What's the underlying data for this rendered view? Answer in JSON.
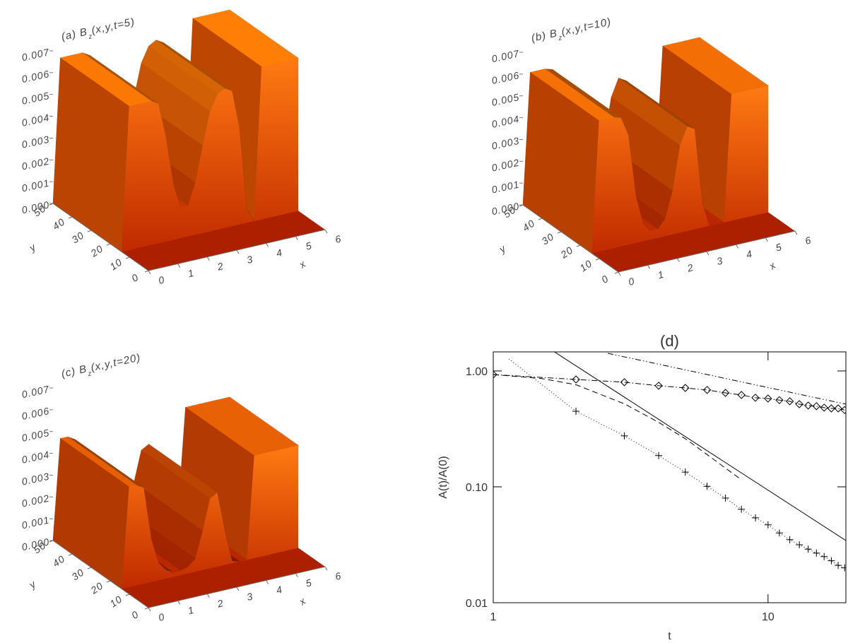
{
  "chart_data": [
    {
      "type": "surface",
      "title": [
        "(a) B",
        "z",
        "(x,y,t=5)"
      ],
      "x_label": "x",
      "y_label": "y",
      "xlim": [
        0,
        6
      ],
      "xticks": [
        0,
        1,
        2,
        3,
        4,
        5,
        6
      ],
      "ylim": [
        0,
        50
      ],
      "yticks": [
        0,
        10,
        20,
        30,
        40,
        50
      ],
      "zlim": [
        0,
        0.007
      ],
      "zticks": [
        {
          "value": 0,
          "label": "0.000"
        },
        0.001,
        0.002,
        0.003,
        0.004,
        0.005,
        0.006,
        0.007
      ],
      "x": [
        0,
        0.25,
        0.5,
        0.75,
        1,
        1.25,
        1.5,
        1.75,
        2,
        2.25,
        2.5,
        2.75,
        3,
        3.25,
        3.5,
        3.75,
        4,
        4.25,
        4.5,
        4.75,
        5,
        5.25,
        5.5,
        5.75,
        6
      ],
      "values": [
        0,
        0.0066,
        0.0066,
        0.0066,
        0.0066,
        0.0064,
        0.0048,
        0.0026,
        0.0014,
        0.0014,
        0.0024,
        0.004,
        0.0055,
        0.0062,
        0.0064,
        0.0062,
        0.0044,
        0.0006,
        0,
        0.007,
        0.007,
        0.007,
        0.007,
        0.007,
        0.007
      ]
    },
    {
      "type": "surface",
      "title": [
        "(b) B",
        "z",
        "(x,y,t=10)"
      ],
      "x_label": "x",
      "y_label": "y",
      "xlim": [
        0,
        6
      ],
      "xticks": [
        0,
        1,
        2,
        3,
        4,
        5,
        6
      ],
      "ylim": [
        0,
        50
      ],
      "yticks": [
        0,
        10,
        20,
        30,
        40,
        50
      ],
      "zlim": [
        0,
        0.007
      ],
      "zticks": [
        {
          "value": 0,
          "label": "0.000"
        },
        0.001,
        0.002,
        0.003,
        0.004,
        0.005,
        0.006,
        0.007
      ],
      "x": [
        0,
        0.25,
        0.5,
        0.75,
        1,
        1.25,
        1.5,
        1.75,
        2,
        2.25,
        2.5,
        2.75,
        3,
        3.25,
        3.5,
        3.75,
        4,
        4.25,
        4.5,
        4.75,
        5,
        5.25,
        5.5,
        5.75,
        6
      ],
      "values": [
        0,
        0.006,
        0.006,
        0.006,
        0.0059,
        0.005,
        0.0022,
        0.0008,
        0.0004,
        0.0004,
        0.0008,
        0.002,
        0.004,
        0.0048,
        0.0046,
        0.0012,
        0,
        0,
        0,
        0.0058,
        0.0058,
        0.0058,
        0.0058,
        0.0058,
        0.0058
      ]
    },
    {
      "type": "surface",
      "title": [
        "(c) B",
        "z",
        "(x,y,t=20)"
      ],
      "x_label": "x",
      "y_label": "y",
      "xlim": [
        0,
        6
      ],
      "xticks": [
        0,
        1,
        2,
        3,
        4,
        5,
        6
      ],
      "ylim": [
        0,
        50
      ],
      "yticks": [
        0,
        10,
        20,
        30,
        40,
        50
      ],
      "zlim": [
        0,
        0.007
      ],
      "zticks": [
        {
          "value": 0,
          "label": "0.000"
        },
        0.001,
        0.002,
        0.003,
        0.004,
        0.005,
        0.006,
        0.007
      ],
      "x": [
        0,
        0.25,
        0.5,
        0.75,
        1,
        1.25,
        1.5,
        1.75,
        2,
        2.25,
        2.5,
        2.75,
        3,
        3.25,
        3.5,
        3.75,
        4,
        4.25,
        4.5,
        4.75,
        5,
        5.25,
        5.5,
        5.75,
        6
      ],
      "values": [
        0,
        0.0046,
        0.0046,
        0.0044,
        0.002,
        0.0008,
        0.0004,
        0.0002,
        0.0002,
        0.0003,
        0.0006,
        0.0018,
        0.0032,
        0.0034,
        0.0016,
        0.0001,
        0,
        0,
        0.0047,
        0.0047,
        0.0047,
        0.0047,
        0.0047,
        0.0047,
        0.0047
      ]
    },
    {
      "type": "line",
      "title": "(d)",
      "x_label": "t",
      "y_label": "A(t)/A(0)",
      "xlog": true,
      "ylog": true,
      "xlim": [
        1,
        19.2
      ],
      "xticks": [
        1,
        10
      ],
      "ylim": [
        0.01,
        1.46
      ],
      "yticks": [
        0.01,
        {
          "value": 0.1,
          "label": "0.10"
        },
        {
          "value": 1,
          "label": "1.00"
        }
      ],
      "series": [
        {
          "color": "#000000",
          "dash": "dotted",
          "marker": "plus",
          "x": [
            2,
            3,
            4,
            5,
            6,
            7,
            8,
            9,
            10,
            11,
            12,
            13,
            14,
            15,
            16,
            17,
            18,
            19
          ],
          "values": [
            0.449,
            0.275,
            0.186,
            0.134,
            0.101,
            0.08,
            0.064,
            0.054,
            0.047,
            0.04,
            0.035,
            0.0316,
            0.029,
            0.0268,
            0.025,
            0.023,
            0.021,
            0.02
          ]
        },
        {
          "color": "#000000",
          "dash": "dotted",
          "x": [
            1.14,
            2
          ],
          "values": [
            1.27,
            0.449
          ]
        },
        {
          "color": "#000000",
          "dash": "dashdot",
          "marker": "diamond",
          "x": [
            1,
            2,
            3,
            4,
            5,
            6,
            7,
            8,
            9,
            10,
            11,
            12,
            13,
            14,
            15,
            16,
            17,
            18,
            19
          ],
          "values": [
            0.93,
            0.845,
            0.8,
            0.745,
            0.714,
            0.685,
            0.647,
            0.62,
            0.587,
            0.578,
            0.56,
            0.547,
            0.517,
            0.503,
            0.496,
            0.482,
            0.475,
            0.475,
            0.46
          ]
        },
        {
          "color": "#000000",
          "dash": "solid",
          "x": [
            1.67,
            19.2
          ],
          "values": [
            1.46,
            0.0344
          ]
        },
        {
          "color": "#000000",
          "dash": "dashed",
          "x": [
            1,
            1.5,
            2,
            3,
            4,
            5,
            6,
            7,
            8
          ],
          "values": [
            0.93,
            0.86,
            0.76,
            0.52,
            0.36,
            0.26,
            0.19,
            0.145,
            0.115
          ]
        },
        {
          "color": "#000000",
          "dash": "dashdotdot",
          "x": [
            2.61,
            19.2
          ],
          "values": [
            1.42,
            0.517
          ]
        }
      ]
    }
  ]
}
